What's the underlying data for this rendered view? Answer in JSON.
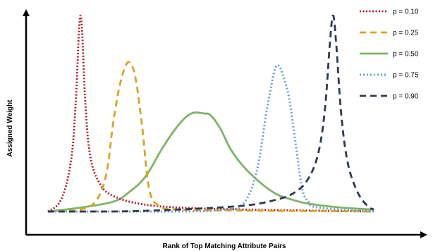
{
  "chart_data": {
    "type": "line",
    "xlabel": "Rank of Top Matching Attribute Pairs",
    "ylabel": "Assigned Weight",
    "ylim": [
      0,
      1
    ],
    "legend_position": "top-right",
    "series": [
      {
        "name": "p = 0.10",
        "style": "dotted",
        "color": "#b2182b",
        "x": [
          0.0,
          0.04,
          0.07,
          0.085,
          0.1,
          0.115,
          0.13,
          0.16,
          0.2,
          0.28,
          0.4,
          0.6,
          0.8,
          1.0
        ],
        "y": [
          0.0,
          0.06,
          0.25,
          0.55,
          1.0,
          0.55,
          0.28,
          0.14,
          0.08,
          0.04,
          0.02,
          0.01,
          0.005,
          0.0
        ]
      },
      {
        "name": "p = 0.25",
        "style": "dashed",
        "color": "#d9a520",
        "x": [
          0.0,
          0.1,
          0.15,
          0.18,
          0.2,
          0.22,
          0.24,
          0.255,
          0.27,
          0.29,
          0.31,
          0.34,
          0.4,
          0.6,
          1.0
        ],
        "y": [
          0.0,
          0.01,
          0.06,
          0.2,
          0.45,
          0.64,
          0.75,
          0.75,
          0.67,
          0.42,
          0.12,
          0.03,
          0.01,
          0.005,
          0.0
        ]
      },
      {
        "name": "p = 0.50",
        "style": "solid",
        "color": "#7fb466",
        "x": [
          0.0,
          0.1,
          0.2,
          0.25,
          0.3,
          0.35,
          0.4,
          0.44,
          0.48,
          0.5,
          0.53,
          0.56,
          0.6,
          0.65,
          0.7,
          0.75,
          0.8,
          0.9,
          1.0
        ],
        "y": [
          0.0,
          0.02,
          0.05,
          0.1,
          0.18,
          0.32,
          0.44,
          0.5,
          0.5,
          0.49,
          0.42,
          0.32,
          0.23,
          0.15,
          0.09,
          0.06,
          0.04,
          0.02,
          0.01
        ]
      },
      {
        "name": "p = 0.75",
        "style": "dotted",
        "color": "#6e9dd6",
        "x": [
          0.0,
          0.4,
          0.55,
          0.6,
          0.64,
          0.67,
          0.69,
          0.7,
          0.71,
          0.72,
          0.74,
          0.76,
          0.78,
          0.8,
          0.83,
          1.0
        ],
        "y": [
          0.0,
          0.0,
          0.01,
          0.04,
          0.2,
          0.5,
          0.68,
          0.74,
          0.74,
          0.7,
          0.58,
          0.35,
          0.12,
          0.05,
          0.02,
          0.0
        ]
      },
      {
        "name": "p = 0.90",
        "style": "dashed",
        "color": "#2b3a4f",
        "x": [
          0.0,
          0.2,
          0.4,
          0.6,
          0.7,
          0.76,
          0.8,
          0.83,
          0.85,
          0.865,
          0.875,
          0.885,
          0.9,
          0.92,
          0.95,
          0.98,
          1.0
        ],
        "y": [
          0.0,
          0.0,
          0.01,
          0.03,
          0.06,
          0.1,
          0.17,
          0.3,
          0.52,
          0.85,
          1.0,
          0.85,
          0.5,
          0.25,
          0.1,
          0.03,
          0.01
        ]
      }
    ]
  }
}
